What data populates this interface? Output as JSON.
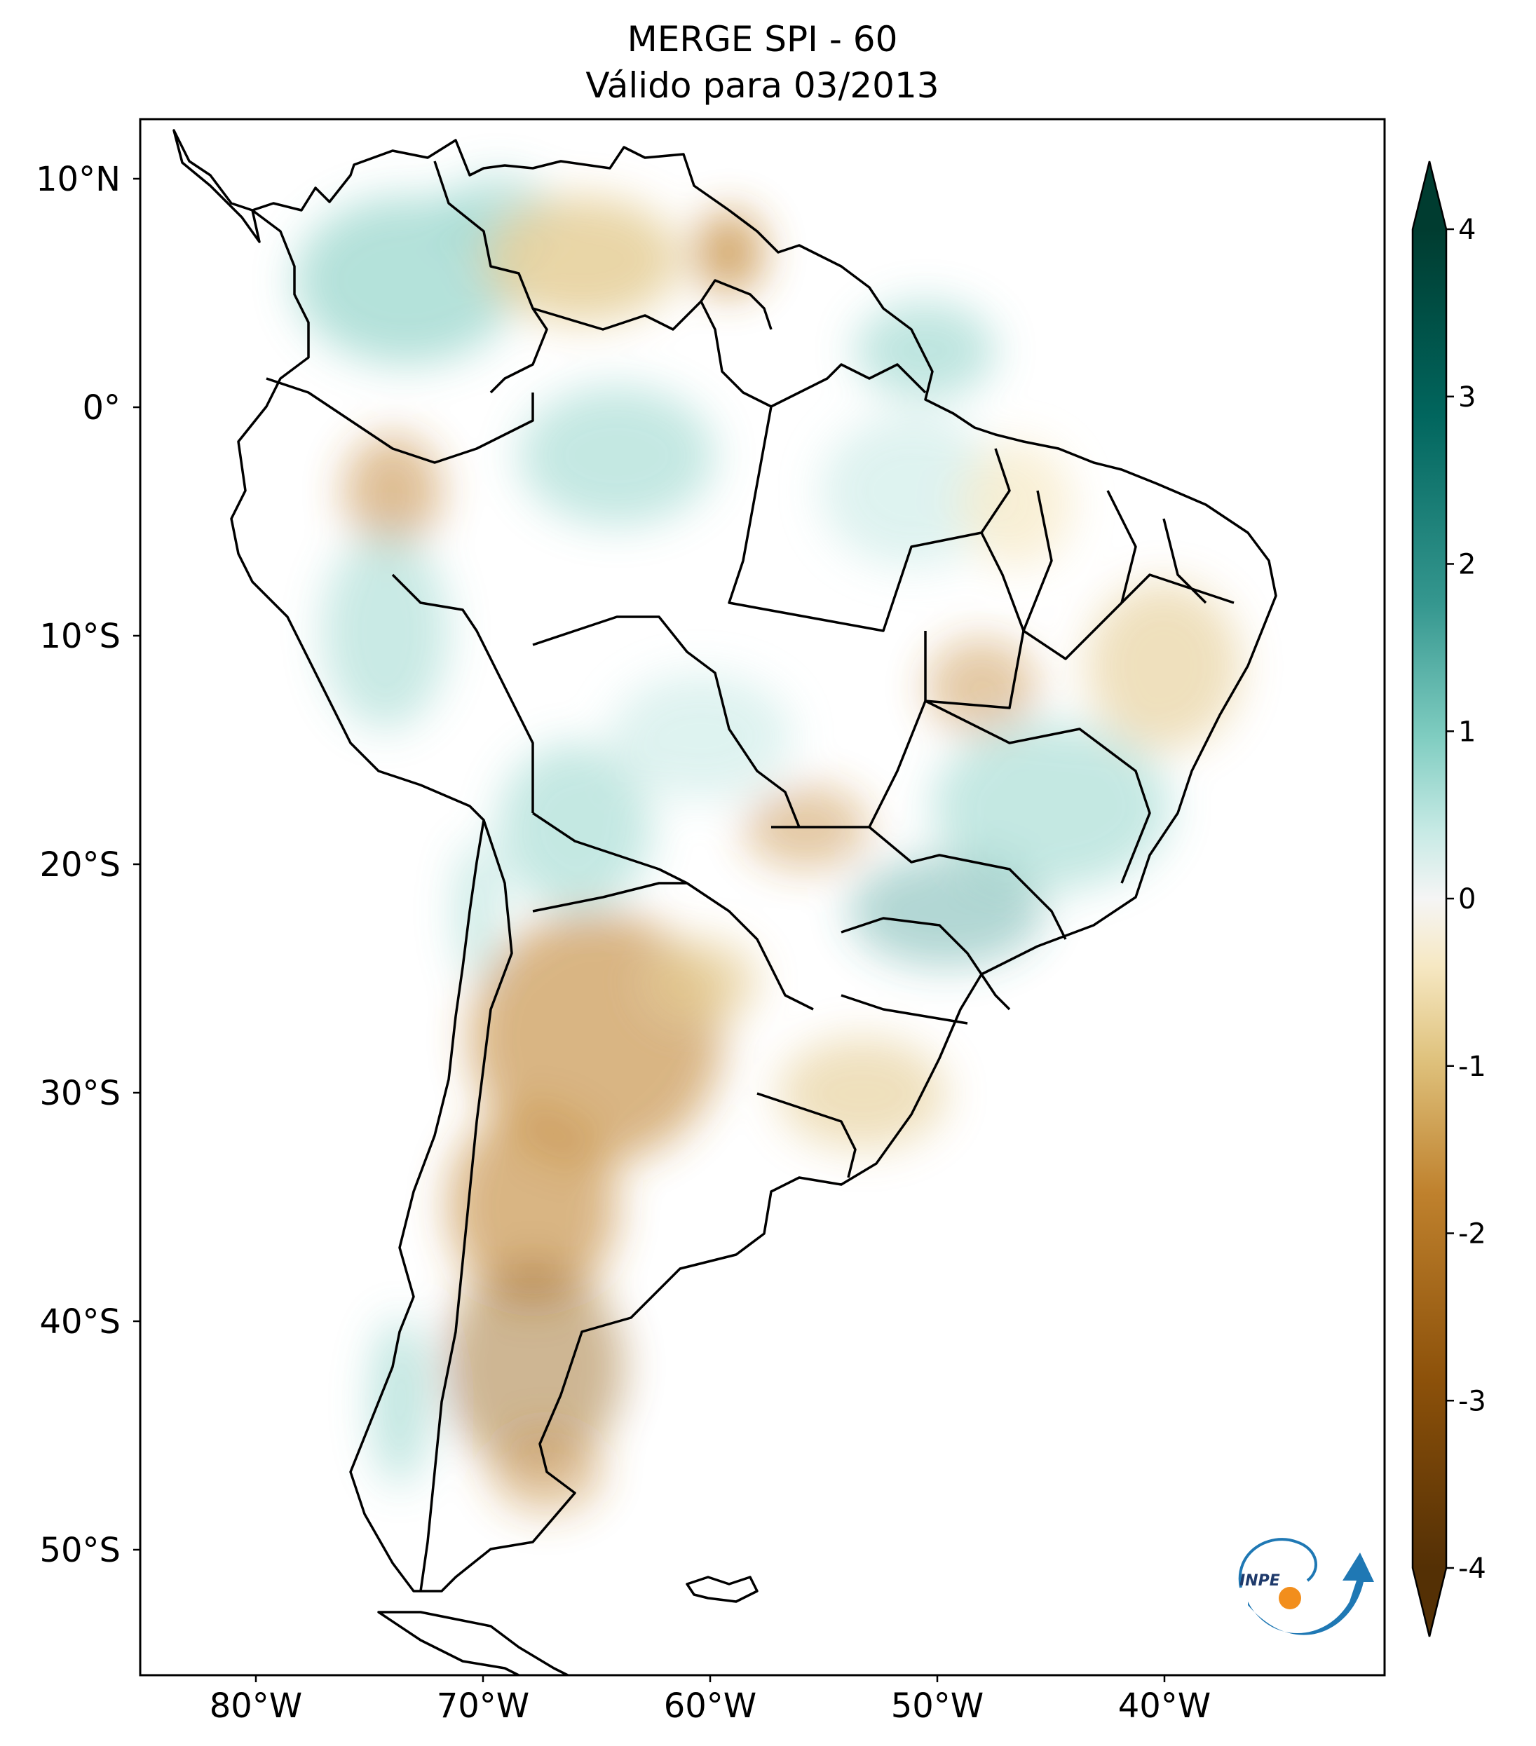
{
  "title": {
    "line1": "MERGE   SPI - 60",
    "line2": "Válido para 03/2013"
  },
  "map": {
    "region": "South America",
    "lat_ticks": [
      "10°N",
      "0°",
      "10°S",
      "20°S",
      "30°S",
      "40°S",
      "50°S"
    ],
    "lon_ticks": [
      "80°W",
      "70°W",
      "60°W",
      "50°W",
      "40°W"
    ],
    "lat_values": [
      10,
      0,
      -10,
      -20,
      -30,
      -40,
      -50
    ],
    "lon_values": [
      -80,
      -70,
      -60,
      -50,
      -40
    ]
  },
  "colorbar": {
    "ticks": [
      "4",
      "3",
      "2",
      "1",
      "0",
      "-1",
      "-2",
      "-3",
      "-4"
    ],
    "values": [
      4,
      3,
      2,
      1,
      0,
      -1,
      -2,
      -3,
      -4
    ],
    "colormap": "BrBG",
    "colors": {
      "max": "#003c30",
      "high": "#35978f",
      "mid_high": "#c7eae5",
      "zero": "#f5f5f5",
      "mid_low": "#f6e8c3",
      "low": "#bf812d",
      "min": "#543005"
    }
  },
  "logo": {
    "text": "INPE"
  }
}
